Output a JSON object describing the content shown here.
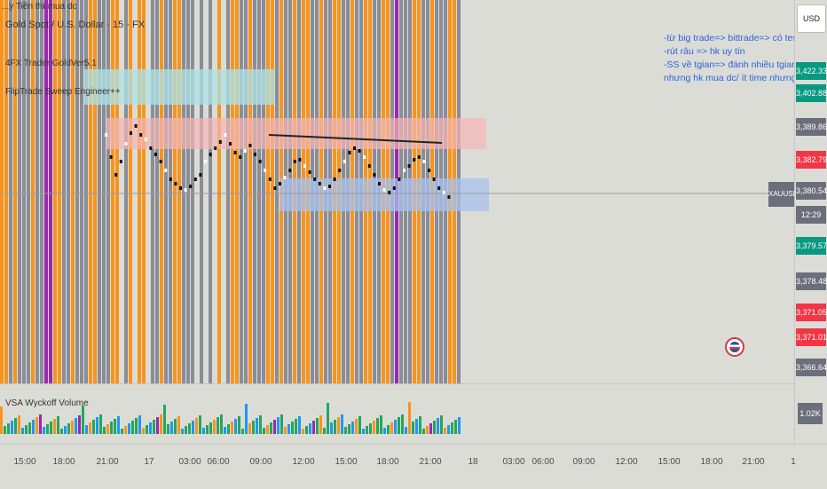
{
  "legend": {
    "line1": "...y Tiền thì mua dc",
    "symbol": "Gold Spot / U.S. Dollar · 15 · FX",
    "indicator1": "4FX Trader GoldVer5.1",
    "indicator2": "FlipTrade Sweep Engineer++"
  },
  "notes": [
    "-từ big trade=> bittrade=> có test",
    "-rút râu => hk uy tín",
    "-SS về tgian=> đánh nhiều tgian",
    "nhưng hk mua dc/ ít time nhưng mua dc"
  ],
  "currency_button": "USD",
  "price_axis": {
    "labels": [
      {
        "text": "3,422.33",
        "color": "#089981"
      },
      {
        "text": "3,402.88",
        "color": "#089981"
      },
      {
        "text": "3,389.86",
        "color": "#6b6f7b"
      },
      {
        "text": "3,382.79",
        "color": "#f23645"
      },
      {
        "text": "3,380.54",
        "color": "#6b6f7b"
      },
      {
        "text": "12:29",
        "color": "#6b6f7b"
      },
      {
        "text": "3,379.57",
        "color": "#089981"
      },
      {
        "text": "3,378.48",
        "color": "#6b6f7b"
      },
      {
        "text": "3,371.05",
        "color": "#f23645"
      },
      {
        "text": "3,371.01",
        "color": "#f23645"
      },
      {
        "text": "3,366.64",
        "color": "#6b6f7b"
      }
    ],
    "symbol_tag": "XAUUSD"
  },
  "volume": {
    "label": "VSA Wyckoff Volume",
    "value": "1.02K"
  },
  "time_axis": [
    "15:00",
    "18:00",
    "21:00",
    "17",
    "03:00",
    "06:00",
    "09:00",
    "12:00",
    "15:00",
    "18:00",
    "21:00",
    "18",
    "03:00",
    "06:00",
    "09:00",
    "12:00",
    "15:00",
    "18:00",
    "21:00",
    "1"
  ],
  "colors": {
    "orange": "#f7941d",
    "gray": "#8a8d96",
    "purple": "#9c27b0",
    "up": "#26a65b",
    "down": "#2196f3"
  }
}
